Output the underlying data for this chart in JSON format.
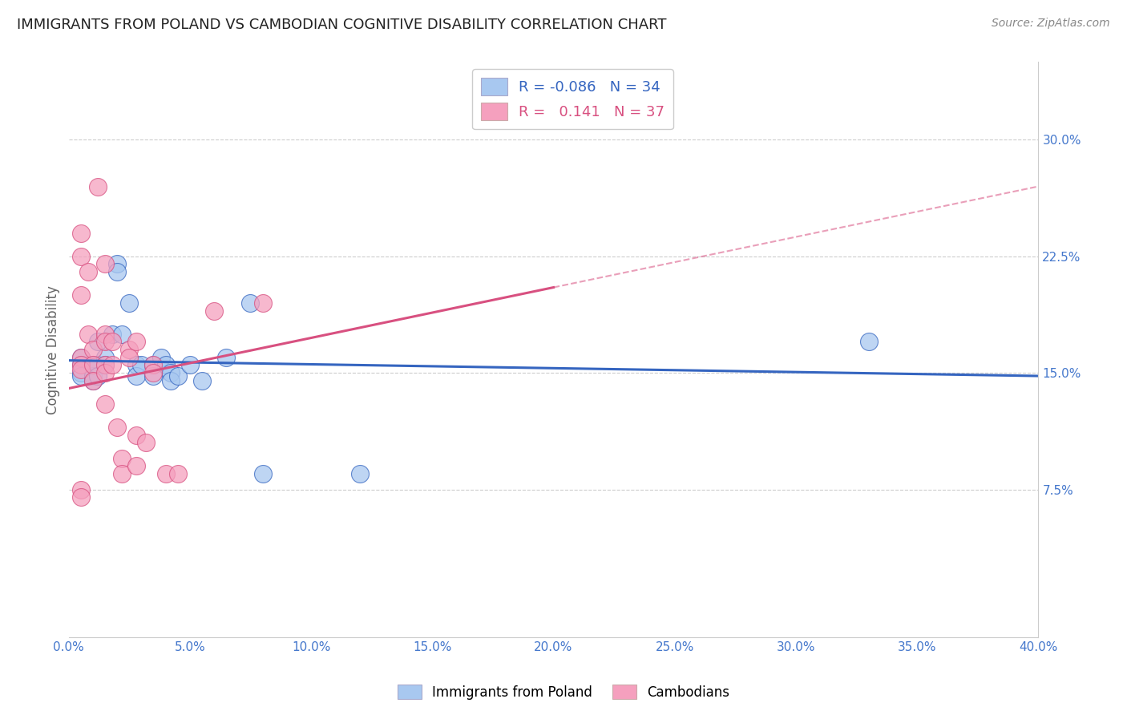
{
  "title": "IMMIGRANTS FROM POLAND VS CAMBODIAN COGNITIVE DISABILITY CORRELATION CHART",
  "source": "Source: ZipAtlas.com",
  "ylabel": "Cognitive Disability",
  "yticks": [
    0.075,
    0.15,
    0.225,
    0.3
  ],
  "ytick_labels": [
    "7.5%",
    "15.0%",
    "22.5%",
    "30.0%"
  ],
  "legend1_label": "Immigrants from Poland",
  "legend2_label": "Cambodians",
  "blue_color": "#A8C8F0",
  "pink_color": "#F5A0BE",
  "blue_line_color": "#3565C0",
  "pink_line_color": "#D85080",
  "blue_points": [
    [
      0.005,
      0.16
    ],
    [
      0.005,
      0.155
    ],
    [
      0.005,
      0.15
    ],
    [
      0.005,
      0.148
    ],
    [
      0.01,
      0.155
    ],
    [
      0.01,
      0.148
    ],
    [
      0.01,
      0.145
    ],
    [
      0.012,
      0.17
    ],
    [
      0.012,
      0.155
    ],
    [
      0.012,
      0.148
    ],
    [
      0.015,
      0.16
    ],
    [
      0.015,
      0.155
    ],
    [
      0.018,
      0.175
    ],
    [
      0.02,
      0.22
    ],
    [
      0.02,
      0.215
    ],
    [
      0.022,
      0.175
    ],
    [
      0.025,
      0.195
    ],
    [
      0.028,
      0.155
    ],
    [
      0.028,
      0.148
    ],
    [
      0.03,
      0.155
    ],
    [
      0.035,
      0.155
    ],
    [
      0.035,
      0.148
    ],
    [
      0.038,
      0.16
    ],
    [
      0.04,
      0.155
    ],
    [
      0.042,
      0.15
    ],
    [
      0.042,
      0.145
    ],
    [
      0.045,
      0.148
    ],
    [
      0.05,
      0.155
    ],
    [
      0.055,
      0.145
    ],
    [
      0.065,
      0.16
    ],
    [
      0.075,
      0.195
    ],
    [
      0.08,
      0.085
    ],
    [
      0.12,
      0.085
    ],
    [
      0.33,
      0.17
    ]
  ],
  "pink_points": [
    [
      0.005,
      0.16
    ],
    [
      0.005,
      0.155
    ],
    [
      0.005,
      0.152
    ],
    [
      0.005,
      0.2
    ],
    [
      0.005,
      0.225
    ],
    [
      0.005,
      0.24
    ],
    [
      0.005,
      0.075
    ],
    [
      0.005,
      0.07
    ],
    [
      0.008,
      0.215
    ],
    [
      0.008,
      0.175
    ],
    [
      0.01,
      0.165
    ],
    [
      0.01,
      0.155
    ],
    [
      0.01,
      0.145
    ],
    [
      0.012,
      0.27
    ],
    [
      0.015,
      0.22
    ],
    [
      0.015,
      0.175
    ],
    [
      0.015,
      0.17
    ],
    [
      0.015,
      0.155
    ],
    [
      0.015,
      0.15
    ],
    [
      0.015,
      0.13
    ],
    [
      0.018,
      0.17
    ],
    [
      0.018,
      0.155
    ],
    [
      0.02,
      0.115
    ],
    [
      0.022,
      0.095
    ],
    [
      0.022,
      0.085
    ],
    [
      0.025,
      0.165
    ],
    [
      0.025,
      0.16
    ],
    [
      0.028,
      0.17
    ],
    [
      0.028,
      0.11
    ],
    [
      0.028,
      0.09
    ],
    [
      0.032,
      0.105
    ],
    [
      0.035,
      0.155
    ],
    [
      0.035,
      0.15
    ],
    [
      0.04,
      0.085
    ],
    [
      0.045,
      0.085
    ],
    [
      0.06,
      0.19
    ],
    [
      0.08,
      0.195
    ]
  ],
  "blue_line": {
    "x0": 0.0,
    "y0": 0.158,
    "x1": 0.4,
    "y1": 0.148
  },
  "pink_line_solid": {
    "x0": 0.0,
    "y0": 0.14,
    "x1": 0.2,
    "y1": 0.205
  },
  "pink_line_dashed": {
    "x0": 0.2,
    "y0": 0.205,
    "x1": 0.4,
    "y1": 0.27
  },
  "xlim": [
    0.0,
    0.4
  ],
  "ylim": [
    -0.02,
    0.35
  ],
  "xticks": [
    0.0,
    0.05,
    0.1,
    0.15,
    0.2,
    0.25,
    0.3,
    0.35,
    0.4
  ],
  "xtick_labels": [
    "0.0%",
    "5.0%",
    "10.0%",
    "15.0%",
    "20.0%",
    "25.0%",
    "30.0%",
    "35.0%",
    "40.0%"
  ]
}
